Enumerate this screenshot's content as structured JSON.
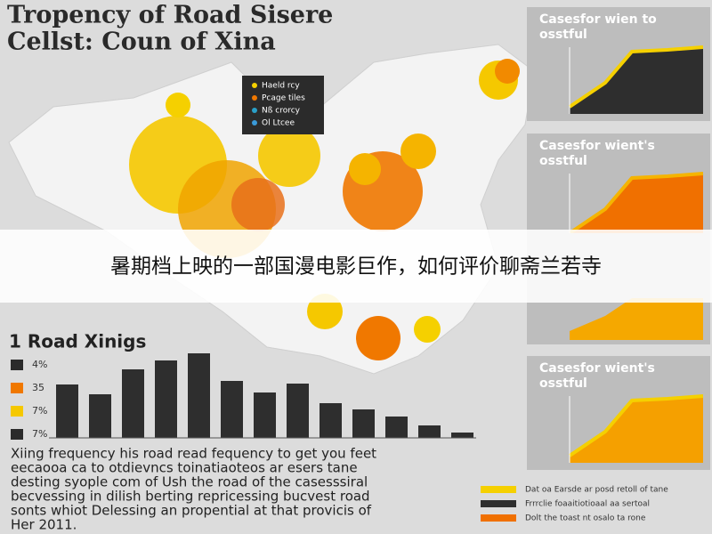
{
  "header": {
    "title_line1": "Tropency of Road Sisere",
    "title_line2": "Cellst: Coun of Xina"
  },
  "map_legend": [
    "Haeld rcy",
    "Pcage tiles",
    "Nß crorcy",
    "Ol Ltcee"
  ],
  "bar_section": {
    "title": "1 Road Xinigs",
    "legend": [
      "4%",
      "35",
      "7%",
      "7%"
    ]
  },
  "paragraph": [
    "Xiing frequency his road read fequency to get you feet",
    "eecaooa ca to otdievncs toinatiaoteos ar esers tane",
    "desting syople com of Ush the road of the casesssiral",
    "becvessing in dilish berting repricessing bucvest road",
    "sonts whiot Delessing an propential at that provicis of",
    "Her 2011."
  ],
  "panels": [
    {
      "title_line1": "Casesfor wien to",
      "title_line2": "osstful"
    },
    {
      "title_line1": "Casesfor wient's",
      "title_line2": "osstful"
    },
    {
      "title_line1": "Casesfor wient's",
      "title_line2": "osstful"
    }
  ],
  "bottom_legend": [
    "Dat oa Earsde ar posd retoll of tane",
    "Frrrclie foaaitiotioaal aa sertoal",
    "Dolt the toast nt osalo ta rone"
  ],
  "banner": "暑期档上映的一部国漫电影巨作，如何评价聊斋兰若寺"
}
